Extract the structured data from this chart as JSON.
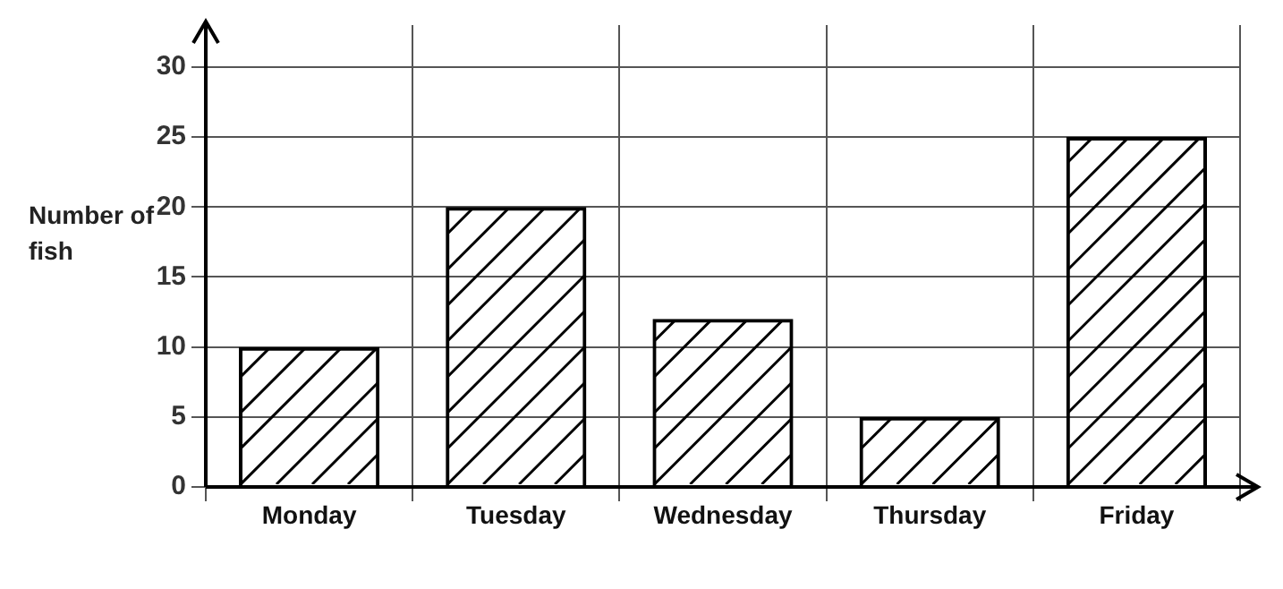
{
  "chart_data": {
    "type": "bar",
    "ylabel": "Number of fish",
    "categories": [
      "Monday",
      "Tuesday",
      "Wednesday",
      "Thursday",
      "Friday"
    ],
    "values": [
      10,
      20,
      12,
      5,
      25
    ],
    "color": "#000000",
    "ylim": [
      0,
      33
    ],
    "yticks": [
      0,
      5,
      10,
      15,
      20,
      25,
      30
    ],
    "grid": true
  }
}
